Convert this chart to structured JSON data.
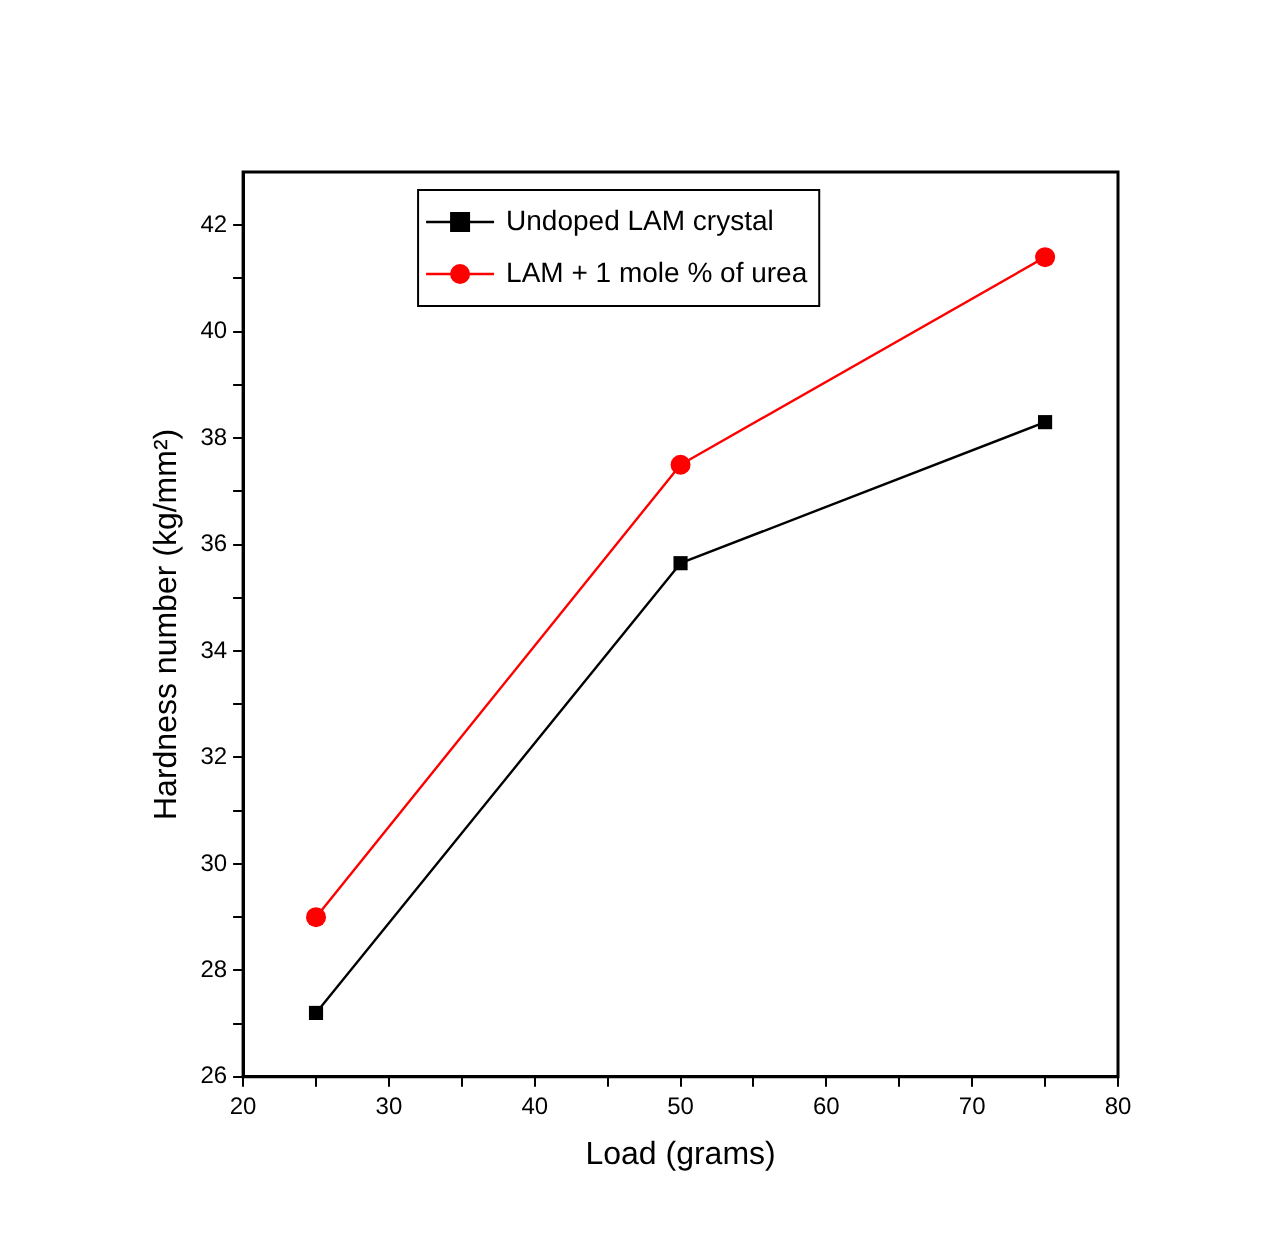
{
  "chart_data": {
    "type": "line",
    "xlabel": "Load (grams)",
    "ylabel": "Hardness number (kg/mm²)",
    "x": [
      25,
      50,
      75
    ],
    "series": [
      {
        "name": "Undoped LAM crystal",
        "color": "#000000",
        "marker": "square",
        "values": [
          27.2,
          35.65,
          38.3
        ]
      },
      {
        "name": "LAM + 1 mole % of urea",
        "color": "#ff0000",
        "marker": "circle",
        "values": [
          29.0,
          37.5,
          41.4
        ]
      }
    ],
    "xlim": [
      20,
      80
    ],
    "xticks": [
      20,
      {
        "value": 25,
        "label": null
      },
      30,
      {
        "value": 35,
        "label": null
      },
      40,
      {
        "value": 45,
        "label": null
      },
      50,
      {
        "value": 55,
        "label": null
      },
      60,
      {
        "value": 65,
        "label": null
      },
      70,
      {
        "value": 75,
        "label": null
      },
      80
    ],
    "ylim": [
      26,
      43
    ],
    "yticks": [
      26,
      {
        "value": 27,
        "label": null
      },
      28,
      {
        "value": 29,
        "label": null
      },
      30,
      {
        "value": 31,
        "label": null
      },
      32,
      {
        "value": 33,
        "label": null
      },
      34,
      {
        "value": 35,
        "label": null
      },
      36,
      {
        "value": 37,
        "label": null
      },
      38,
      {
        "value": 39,
        "label": null
      },
      40,
      {
        "value": 41,
        "label": null
      },
      42
    ],
    "grid": false,
    "legend": "top"
  }
}
